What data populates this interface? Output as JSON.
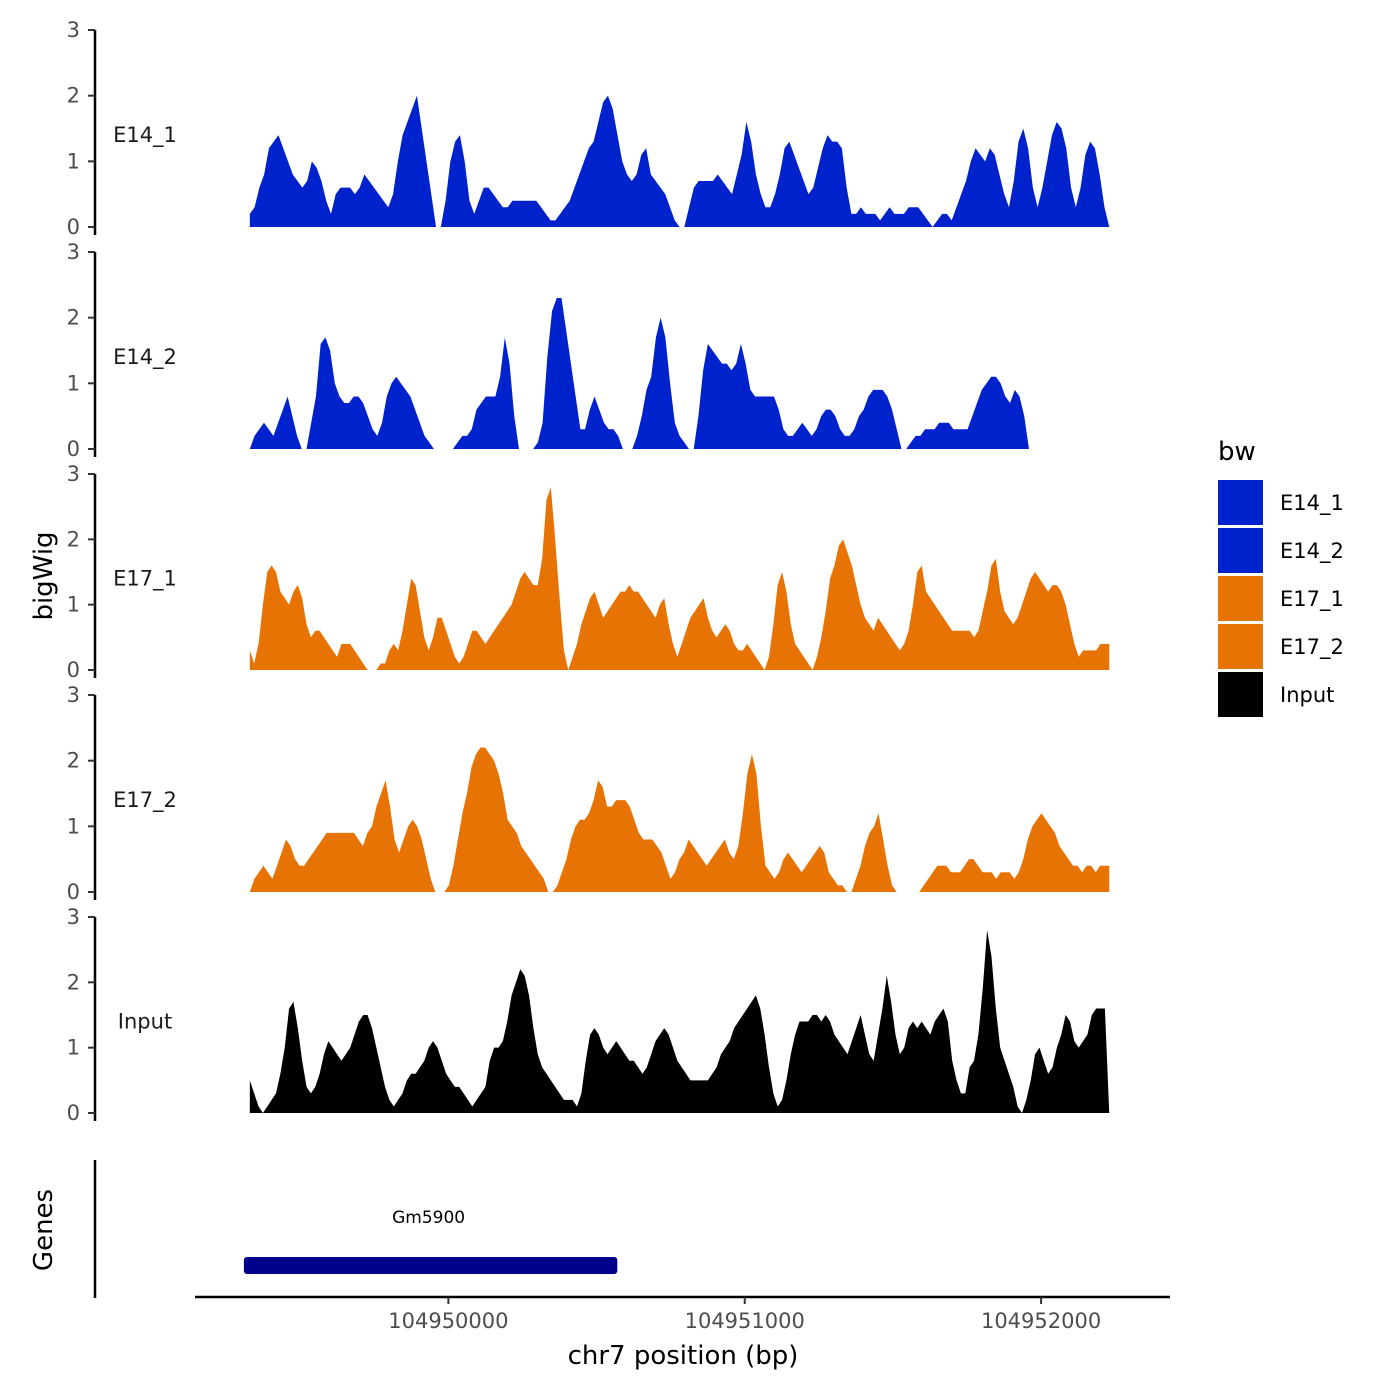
{
  "chart_data": {
    "type": "area",
    "title": "",
    "ylabel": "bigWig",
    "genes_label": "Genes",
    "xlabel": "chr7 position (bp)",
    "xlim": [
      104949145,
      104952435
    ],
    "x_range_data": [
      104949330,
      104952230
    ],
    "ylim": [
      0,
      3
    ],
    "yticks": [
      0,
      1,
      2,
      3
    ],
    "xticks": [
      104950000,
      104951000,
      104952000
    ],
    "xtick_labels": [
      "104950000",
      "104951000",
      "104952000"
    ],
    "legend": {
      "title": "bw",
      "position": "right",
      "entries": [
        {
          "label": "E14_1",
          "color": "#0022CC"
        },
        {
          "label": "E14_2",
          "color": "#0022CC"
        },
        {
          "label": "E17_1",
          "color": "#E87305"
        },
        {
          "label": "E17_2",
          "color": "#E87305"
        },
        {
          "label": "Input",
          "color": "#000000"
        }
      ]
    },
    "series": [
      {
        "name": "E14_1",
        "color": "#0022CC",
        "values": [
          0.2,
          0.3,
          0.6,
          0.8,
          1.2,
          1.3,
          1.4,
          1.2,
          1.0,
          0.8,
          0.7,
          0.6,
          0.7,
          1.0,
          0.9,
          0.7,
          0.4,
          0.2,
          0.5,
          0.6,
          0.6,
          0.6,
          0.5,
          0.6,
          0.8,
          0.7,
          0.6,
          0.5,
          0.4,
          0.3,
          0.5,
          1.0,
          1.4,
          1.6,
          1.8,
          2.0,
          1.5,
          1.0,
          0.5,
          0,
          0,
          0.4,
          1.0,
          1.3,
          1.4,
          1.0,
          0.4,
          0.2,
          0.4,
          0.6,
          0.6,
          0.5,
          0.4,
          0.3,
          0.3,
          0.4,
          0.4,
          0.4,
          0.4,
          0.4,
          0.4,
          0.3,
          0.2,
          0.1,
          0.1,
          0.2,
          0.3,
          0.4,
          0.6,
          0.8,
          1.0,
          1.2,
          1.3,
          1.6,
          1.9,
          2.0,
          1.8,
          1.4,
          1.0,
          0.8,
          0.7,
          0.8,
          1.1,
          1.2,
          0.8,
          0.7,
          0.6,
          0.5,
          0.3,
          0.1,
          0,
          0,
          0.3,
          0.6,
          0.7,
          0.7,
          0.7,
          0.7,
          0.8,
          0.7,
          0.6,
          0.5,
          0.8,
          1.1,
          1.6,
          1.3,
          0.8,
          0.5,
          0.3,
          0.3,
          0.5,
          0.8,
          1.2,
          1.3,
          1.1,
          0.9,
          0.7,
          0.5,
          0.6,
          0.9,
          1.2,
          1.4,
          1.3,
          1.3,
          1.2,
          0.6,
          0.2,
          0.2,
          0.3,
          0.2,
          0.2,
          0.2,
          0.1,
          0.2,
          0.3,
          0.2,
          0.2,
          0.2,
          0.3,
          0.3,
          0.3,
          0.2,
          0.1,
          0,
          0.1,
          0.2,
          0.2,
          0.1,
          0.3,
          0.5,
          0.7,
          1.0,
          1.2,
          1.1,
          1.0,
          1.2,
          1.1,
          0.8,
          0.5,
          0.3,
          0.7,
          1.3,
          1.5,
          1.2,
          0.6,
          0.3,
          0.6,
          1.0,
          1.4,
          1.6,
          1.5,
          1.2,
          0.6,
          0.3,
          0.6,
          1.1,
          1.3,
          1.2,
          0.8,
          0.3,
          0
        ]
      },
      {
        "name": "E14_2",
        "color": "#0022CC",
        "values": [
          0,
          0.2,
          0.3,
          0.4,
          0.3,
          0.2,
          0.4,
          0.6,
          0.8,
          0.5,
          0.2,
          0,
          0,
          0.4,
          0.8,
          1.6,
          1.7,
          1.5,
          1.0,
          0.8,
          0.7,
          0.7,
          0.8,
          0.8,
          0.7,
          0.5,
          0.3,
          0.2,
          0.4,
          0.8,
          1.0,
          1.1,
          1.0,
          0.9,
          0.8,
          0.6,
          0.4,
          0.2,
          0.1,
          0,
          0,
          0,
          0,
          0,
          0.1,
          0.2,
          0.2,
          0.3,
          0.6,
          0.7,
          0.8,
          0.8,
          0.8,
          1.1,
          1.7,
          1.3,
          0.5,
          0,
          0,
          0,
          0,
          0.1,
          0.4,
          1.4,
          2.1,
          2.3,
          2.3,
          1.8,
          1.3,
          0.8,
          0.3,
          0.3,
          0.6,
          0.8,
          0.6,
          0.4,
          0.3,
          0.3,
          0.2,
          0,
          0,
          0,
          0.2,
          0.5,
          0.9,
          1.1,
          1.7,
          2.0,
          1.7,
          1.0,
          0.4,
          0.2,
          0.1,
          0,
          0,
          0.5,
          1.2,
          1.6,
          1.5,
          1.4,
          1.3,
          1.3,
          1.2,
          1.3,
          1.6,
          1.3,
          0.9,
          0.8,
          0.8,
          0.8,
          0.8,
          0.8,
          0.6,
          0.3,
          0.2,
          0.2,
          0.3,
          0.4,
          0.3,
          0.2,
          0.3,
          0.5,
          0.6,
          0.6,
          0.5,
          0.3,
          0.2,
          0.2,
          0.3,
          0.5,
          0.6,
          0.8,
          0.9,
          0.9,
          0.9,
          0.8,
          0.6,
          0.3,
          0,
          0,
          0.1,
          0.2,
          0.2,
          0.3,
          0.3,
          0.3,
          0.4,
          0.4,
          0.4,
          0.3,
          0.3,
          0.3,
          0.3,
          0.5,
          0.7,
          0.9,
          1.0,
          1.1,
          1.1,
          1.0,
          0.8,
          0.7,
          0.9,
          0.8,
          0.5,
          0,
          0,
          0,
          0,
          0,
          0,
          0,
          0,
          0,
          0,
          0,
          0,
          0,
          0,
          0,
          0,
          0,
          0
        ]
      },
      {
        "name": "E17_1",
        "color": "#E87305",
        "values": [
          0.3,
          0.1,
          0.4,
          1.0,
          1.5,
          1.6,
          1.5,
          1.2,
          1.1,
          1.0,
          1.2,
          1.3,
          1.1,
          0.7,
          0.5,
          0.6,
          0.6,
          0.5,
          0.4,
          0.3,
          0.2,
          0.4,
          0.4,
          0.4,
          0.3,
          0.2,
          0.1,
          0,
          0,
          0,
          0.1,
          0.1,
          0.3,
          0.4,
          0.3,
          0.6,
          1.0,
          1.4,
          1.3,
          0.9,
          0.5,
          0.3,
          0.5,
          0.8,
          0.8,
          0.6,
          0.4,
          0.2,
          0.1,
          0.2,
          0.4,
          0.6,
          0.6,
          0.5,
          0.4,
          0.5,
          0.6,
          0.7,
          0.8,
          0.9,
          1.0,
          1.2,
          1.4,
          1.5,
          1.4,
          1.3,
          1.3,
          1.7,
          2.6,
          2.8,
          2.0,
          1.1,
          0.3,
          0,
          0.2,
          0.4,
          0.7,
          0.9,
          1.1,
          1.2,
          1.0,
          0.8,
          0.9,
          1.0,
          1.1,
          1.2,
          1.2,
          1.3,
          1.2,
          1.2,
          1.1,
          1.0,
          0.9,
          0.8,
          1.0,
          1.1,
          0.7,
          0.4,
          0.2,
          0.4,
          0.6,
          0.8,
          0.9,
          1.0,
          1.1,
          0.8,
          0.6,
          0.5,
          0.6,
          0.7,
          0.6,
          0.4,
          0.3,
          0.3,
          0.4,
          0.3,
          0.2,
          0.1,
          0,
          0.2,
          0.7,
          1.3,
          1.5,
          1.2,
          0.7,
          0.4,
          0.3,
          0.2,
          0.1,
          0,
          0.2,
          0.5,
          0.9,
          1.4,
          1.6,
          1.9,
          2.0,
          1.8,
          1.6,
          1.3,
          1.0,
          0.8,
          0.7,
          0.6,
          0.8,
          0.7,
          0.6,
          0.5,
          0.4,
          0.3,
          0.4,
          0.6,
          1.0,
          1.5,
          1.6,
          1.2,
          1.1,
          1.0,
          0.9,
          0.8,
          0.7,
          0.6,
          0.6,
          0.6,
          0.6,
          0.6,
          0.5,
          0.6,
          0.9,
          1.2,
          1.6,
          1.7,
          1.2,
          0.9,
          0.8,
          0.7,
          0.8,
          1.0,
          1.2,
          1.4,
          1.5,
          1.4,
          1.3,
          1.2,
          1.3,
          1.3,
          1.2,
          1.0,
          0.7,
          0.4,
          0.2,
          0.3,
          0.3,
          0.3,
          0.3,
          0.4,
          0.4,
          0.4
        ]
      },
      {
        "name": "E17_2",
        "color": "#E87305",
        "values": [
          0,
          0.2,
          0.3,
          0.4,
          0.3,
          0.2,
          0.4,
          0.6,
          0.8,
          0.7,
          0.5,
          0.4,
          0.4,
          0.5,
          0.6,
          0.7,
          0.8,
          0.9,
          0.9,
          0.9,
          0.9,
          0.9,
          0.9,
          0.9,
          0.8,
          0.7,
          0.9,
          1.0,
          1.3,
          1.5,
          1.7,
          1.3,
          0.8,
          0.6,
          0.8,
          1.0,
          1.1,
          1.0,
          0.8,
          0.5,
          0.2,
          0,
          0,
          0,
          0.1,
          0.4,
          0.8,
          1.2,
          1.5,
          1.9,
          2.1,
          2.2,
          2.2,
          2.1,
          2.0,
          1.8,
          1.5,
          1.1,
          1.0,
          0.9,
          0.7,
          0.6,
          0.5,
          0.4,
          0.3,
          0.2,
          0,
          0,
          0.1,
          0.3,
          0.5,
          0.8,
          1.0,
          1.1,
          1.1,
          1.2,
          1.4,
          1.7,
          1.6,
          1.3,
          1.3,
          1.4,
          1.4,
          1.4,
          1.3,
          1.1,
          0.9,
          0.8,
          0.8,
          0.8,
          0.7,
          0.6,
          0.4,
          0.2,
          0.3,
          0.5,
          0.6,
          0.8,
          0.7,
          0.6,
          0.5,
          0.4,
          0.5,
          0.6,
          0.7,
          0.8,
          0.6,
          0.5,
          0.7,
          1.2,
          1.8,
          2.1,
          1.8,
          1.0,
          0.4,
          0.3,
          0.2,
          0.3,
          0.5,
          0.6,
          0.5,
          0.4,
          0.3,
          0.4,
          0.5,
          0.6,
          0.7,
          0.6,
          0.3,
          0.2,
          0.1,
          0.1,
          0,
          0,
          0.2,
          0.4,
          0.7,
          0.9,
          1.0,
          1.2,
          0.8,
          0.4,
          0.1,
          0,
          0,
          0,
          0,
          0,
          0,
          0.1,
          0.2,
          0.3,
          0.4,
          0.4,
          0.4,
          0.3,
          0.3,
          0.3,
          0.4,
          0.5,
          0.5,
          0.4,
          0.3,
          0.3,
          0.3,
          0.2,
          0.3,
          0.3,
          0.3,
          0.2,
          0.3,
          0.5,
          0.8,
          1.0,
          1.1,
          1.2,
          1.1,
          1.0,
          0.9,
          0.7,
          0.6,
          0.5,
          0.4,
          0.4,
          0.3,
          0.4,
          0.4,
          0.3,
          0.4,
          0.4,
          0.4
        ]
      },
      {
        "name": "Input",
        "color": "#000000",
        "values": [
          0.5,
          0.3,
          0.1,
          0,
          0.1,
          0.2,
          0.3,
          0.6,
          1.0,
          1.6,
          1.7,
          1.3,
          0.8,
          0.4,
          0.3,
          0.4,
          0.6,
          0.9,
          1.1,
          1.0,
          0.9,
          0.8,
          0.9,
          1.0,
          1.2,
          1.4,
          1.5,
          1.5,
          1.3,
          1.0,
          0.7,
          0.4,
          0.2,
          0.1,
          0.2,
          0.3,
          0.5,
          0.6,
          0.6,
          0.7,
          0.8,
          1.0,
          1.1,
          1.0,
          0.8,
          0.6,
          0.5,
          0.4,
          0.4,
          0.3,
          0.2,
          0.1,
          0.2,
          0.3,
          0.4,
          0.8,
          1.0,
          1.0,
          1.1,
          1.4,
          1.8,
          2.0,
          2.2,
          2.1,
          1.8,
          1.3,
          0.9,
          0.7,
          0.6,
          0.5,
          0.4,
          0.3,
          0.2,
          0.2,
          0.2,
          0.1,
          0.3,
          0.8,
          1.2,
          1.3,
          1.2,
          1.0,
          0.9,
          1.0,
          1.1,
          1.0,
          0.9,
          0.8,
          0.8,
          0.7,
          0.6,
          0.7,
          0.9,
          1.1,
          1.2,
          1.3,
          1.2,
          1.0,
          0.8,
          0.7,
          0.6,
          0.5,
          0.5,
          0.5,
          0.5,
          0.5,
          0.6,
          0.7,
          0.9,
          1.0,
          1.1,
          1.3,
          1.4,
          1.5,
          1.6,
          1.7,
          1.8,
          1.6,
          1.2,
          0.7,
          0.3,
          0.1,
          0.2,
          0.5,
          0.9,
          1.2,
          1.4,
          1.4,
          1.4,
          1.5,
          1.5,
          1.4,
          1.5,
          1.4,
          1.2,
          1.1,
          1.0,
          0.9,
          1.1,
          1.3,
          1.5,
          1.2,
          0.9,
          0.8,
          1.2,
          1.6,
          2.1,
          1.7,
          1.2,
          0.9,
          1.0,
          1.3,
          1.4,
          1.3,
          1.4,
          1.3,
          1.2,
          1.4,
          1.5,
          1.6,
          1.4,
          0.8,
          0.5,
          0.3,
          0.3,
          0.7,
          0.8,
          1.2,
          1.9,
          2.8,
          2.4,
          1.6,
          1.0,
          0.8,
          0.6,
          0.4,
          0.1,
          0,
          0.2,
          0.5,
          0.9,
          1.0,
          0.8,
          0.6,
          0.7,
          1.0,
          1.2,
          1.5,
          1.4,
          1.1,
          1.0,
          1.1,
          1.2,
          1.5,
          1.6,
          1.6,
          1.6,
          0
        ]
      }
    ],
    "genes": [
      {
        "name": "Gm5900",
        "start": 104949310,
        "end": 104950570,
        "color": "#00008B"
      }
    ]
  }
}
